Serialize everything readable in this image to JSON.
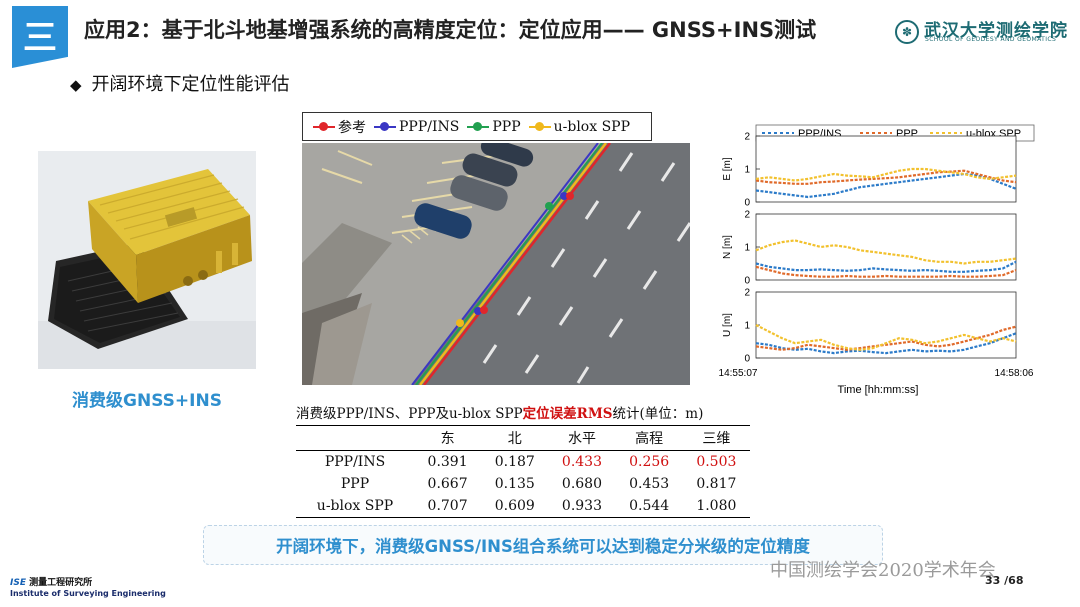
{
  "header": {
    "section_badge": "三",
    "title": "应用2：基于北斗地基增强系统的高精度定位：定位应用—— GNSS+INS测试",
    "logo_text": "武汉大学测绘学院",
    "logo_subtext": "SCHOOL OF GEODESY AND GEOMATICS"
  },
  "subtitle": "开阔环境下定位性能评估",
  "device_caption": "消费级GNSS+INS",
  "map_legend": [
    {
      "label": "参考",
      "color": "#e0262b"
    },
    {
      "label": "PPP/INS",
      "color": "#3a37c4"
    },
    {
      "label": "PPP",
      "color": "#22a050"
    },
    {
      "label": "u-blox SPP",
      "color": "#f0b91c"
    }
  ],
  "chart_data": {
    "type": "line",
    "legend": [
      "PPP/INS",
      "PPP",
      "u-blox SPP"
    ],
    "legend_position": "top",
    "colors": {
      "PPP/INS": "#2c7bc9",
      "PPP": "#e06a2a",
      "u-blox SPP": "#f2c12e"
    },
    "xlabel": "Time [hh:mm:ss]",
    "x_tick_labels": [
      "14:55:07",
      "14:58:06"
    ],
    "panels": [
      {
        "ylabel": "E [m]",
        "ylim": [
          0,
          2
        ],
        "yticks": [
          0,
          1,
          2
        ],
        "series": {
          "PPP/INS": [
            0.35,
            0.3,
            0.25,
            0.2,
            0.15,
            0.2,
            0.25,
            0.35,
            0.45,
            0.5,
            0.55,
            0.6,
            0.65,
            0.7,
            0.75,
            0.8,
            0.85,
            0.8,
            0.7,
            0.55,
            0.4
          ],
          "PPP": [
            0.65,
            0.6,
            0.58,
            0.55,
            0.55,
            0.6,
            0.62,
            0.65,
            0.68,
            0.7,
            0.72,
            0.75,
            0.8,
            0.85,
            0.9,
            0.92,
            0.95,
            0.85,
            0.75,
            0.65,
            0.6
          ],
          "u-blox SPP": [
            0.7,
            0.75,
            0.7,
            0.65,
            0.7,
            0.78,
            0.85,
            0.8,
            0.78,
            0.75,
            0.85,
            0.95,
            1.0,
            1.0,
            0.95,
            0.9,
            0.85,
            0.75,
            0.7,
            0.75,
            0.8
          ]
        }
      },
      {
        "ylabel": "N [m]",
        "ylim": [
          0,
          2
        ],
        "yticks": [
          0,
          1,
          2
        ],
        "series": {
          "PPP/INS": [
            0.5,
            0.4,
            0.35,
            0.3,
            0.3,
            0.32,
            0.3,
            0.28,
            0.3,
            0.35,
            0.32,
            0.3,
            0.28,
            0.3,
            0.28,
            0.25,
            0.25,
            0.28,
            0.3,
            0.35,
            0.55
          ],
          "PPP": [
            0.4,
            0.3,
            0.2,
            0.15,
            0.12,
            0.1,
            0.1,
            0.12,
            0.1,
            0.1,
            0.12,
            0.1,
            0.1,
            0.1,
            0.1,
            0.12,
            0.1,
            0.1,
            0.12,
            0.15,
            0.3
          ],
          "u-blox SPP": [
            0.9,
            1.05,
            1.15,
            1.2,
            1.1,
            1.0,
            1.05,
            1.0,
            0.9,
            0.85,
            0.8,
            0.75,
            0.7,
            0.6,
            0.55,
            0.55,
            0.5,
            0.55,
            0.55,
            0.6,
            0.65
          ]
        }
      },
      {
        "ylabel": "U [m]",
        "ylim": [
          0,
          2
        ],
        "yticks": [
          0,
          1,
          2
        ],
        "series": {
          "PPP/INS": [
            0.45,
            0.4,
            0.3,
            0.25,
            0.28,
            0.2,
            0.15,
            0.2,
            0.22,
            0.18,
            0.15,
            0.2,
            0.25,
            0.2,
            0.22,
            0.2,
            0.25,
            0.35,
            0.45,
            0.6,
            0.75
          ],
          "PPP": [
            0.35,
            0.3,
            0.25,
            0.3,
            0.4,
            0.35,
            0.3,
            0.25,
            0.3,
            0.35,
            0.4,
            0.45,
            0.5,
            0.4,
            0.35,
            0.4,
            0.5,
            0.6,
            0.7,
            0.85,
            0.95
          ],
          "u-blox SPP": [
            1.0,
            0.8,
            0.6,
            0.45,
            0.5,
            0.55,
            0.4,
            0.3,
            0.25,
            0.3,
            0.45,
            0.6,
            0.55,
            0.45,
            0.5,
            0.6,
            0.7,
            0.6,
            0.5,
            0.6,
            0.5
          ]
        }
      }
    ]
  },
  "table": {
    "caption_pre": "消费级PPP/INS、PPP及u-blox SPP",
    "caption_red": "定位误差RMS",
    "caption_post": "统计(单位：m)",
    "headers": [
      "",
      "东",
      "北",
      "水平",
      "高程",
      "三维"
    ],
    "rows": [
      {
        "name": "PPP/INS",
        "values": [
          "0.391",
          "0.187",
          "0.433",
          "0.256",
          "0.503"
        ],
        "highlight_from": 2
      },
      {
        "name": "PPP",
        "values": [
          "0.667",
          "0.135",
          "0.680",
          "0.453",
          "0.817"
        ]
      },
      {
        "name": "u-blox SPP",
        "values": [
          "0.707",
          "0.609",
          "0.933",
          "0.544",
          "1.080"
        ]
      }
    ]
  },
  "conclusion": "开阔环境下，消费级GNSS/INS组合系统可以达到稳定分米级的定位精度",
  "footer": {
    "org_logo_abbr": "ISE",
    "org_name_cn": "测量工程研究所",
    "org_name_en": "Institute of Surveying Engineering",
    "watermark": "中国测绘学会2020学术年会",
    "page_current": "33",
    "page_total": "/68"
  }
}
